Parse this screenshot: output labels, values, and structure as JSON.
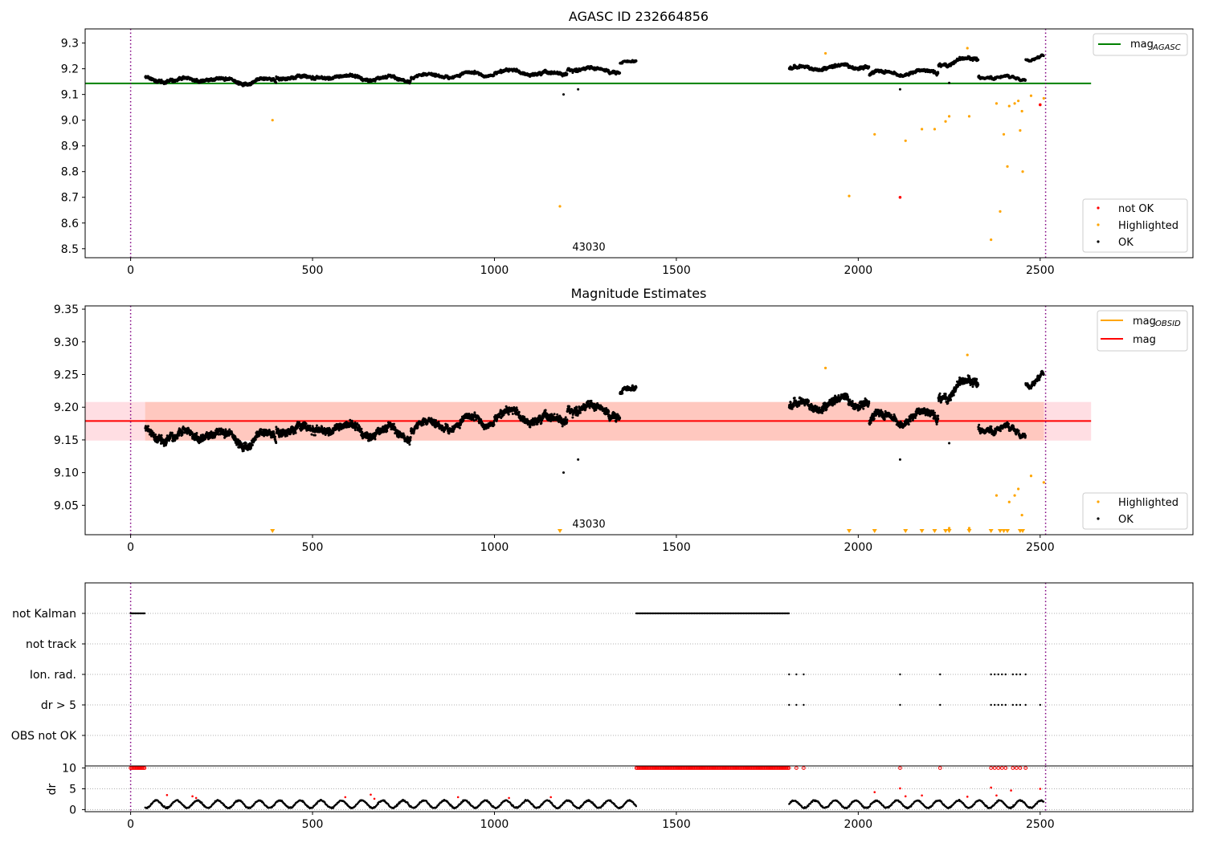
{
  "chart_data": [
    {
      "type": "scatter",
      "title": "AGASC ID 232664856",
      "xlim": [
        -125,
        2920
      ],
      "ylim": [
        8.465,
        9.355
      ],
      "xticks": [
        0,
        500,
        1000,
        1500,
        2000,
        2500
      ],
      "yticks": [
        8.5,
        8.6,
        8.7,
        8.8,
        8.9,
        9.0,
        9.1,
        9.2,
        9.3
      ],
      "vlines": [
        0,
        2515
      ],
      "hline": {
        "name": "mag_AGASC",
        "y": 9.143,
        "x_range": [
          -125,
          2640
        ],
        "color": "#008000"
      },
      "annotation": {
        "text": "43030",
        "x": 1200,
        "y": 8.5
      },
      "series_colors": {
        "OK": "#000000",
        "Highlighted": "#ffa500",
        "not OK": "#ff0000"
      },
      "ok_segments": [
        {
          "x0": 40,
          "x1": 400,
          "y_start": 9.16,
          "y_end": 9.15,
          "noise": 0.015
        },
        {
          "x0": 400,
          "x1": 770,
          "y_start": 9.17,
          "y_end": 9.16,
          "noise": 0.015
        },
        {
          "x0": 770,
          "x1": 1000,
          "y_start": 9.17,
          "y_end": 9.18,
          "noise": 0.012
        },
        {
          "x0": 1000,
          "x1": 1200,
          "y_start": 9.19,
          "y_end": 9.18,
          "noise": 0.015
        },
        {
          "x0": 1200,
          "x1": 1345,
          "y_start": 9.2,
          "y_end": 9.19,
          "noise": 0.015
        },
        {
          "x0": 1345,
          "x1": 1390,
          "y_start": 9.225,
          "y_end": 9.225,
          "noise": 0.008
        },
        {
          "x0": 1810,
          "x1": 2030,
          "y_start": 9.2,
          "y_end": 9.21,
          "noise": 0.015
        },
        {
          "x0": 2030,
          "x1": 2220,
          "y_start": 9.18,
          "y_end": 9.19,
          "noise": 0.015
        },
        {
          "x0": 2220,
          "x1": 2330,
          "y_start": 9.22,
          "y_end": 9.24,
          "noise": 0.015
        },
        {
          "x0": 2330,
          "x1": 2460,
          "y_start": 9.17,
          "y_end": 9.16,
          "noise": 0.01
        },
        {
          "x0": 2460,
          "x1": 2510,
          "y_start": 9.24,
          "y_end": 9.25,
          "noise": 0.008
        }
      ],
      "ok_outliers": [
        {
          "x": 1190,
          "y": 9.1
        },
        {
          "x": 1230,
          "y": 9.12
        },
        {
          "x": 2115,
          "y": 9.12
        },
        {
          "x": 2250,
          "y": 9.145
        }
      ],
      "highlighted": [
        {
          "x": 390,
          "y": 9.0
        },
        {
          "x": 1180,
          "y": 8.665
        },
        {
          "x": 1910,
          "y": 9.26
        },
        {
          "x": 1975,
          "y": 8.705
        },
        {
          "x": 2045,
          "y": 8.945
        },
        {
          "x": 2130,
          "y": 8.92
        },
        {
          "x": 2175,
          "y": 8.965
        },
        {
          "x": 2210,
          "y": 8.965
        },
        {
          "x": 2240,
          "y": 8.995
        },
        {
          "x": 2250,
          "y": 9.015
        },
        {
          "x": 2300,
          "y": 9.28
        },
        {
          "x": 2305,
          "y": 9.015
        },
        {
          "x": 2365,
          "y": 8.535
        },
        {
          "x": 2380,
          "y": 9.065
        },
        {
          "x": 2390,
          "y": 8.645
        },
        {
          "x": 2400,
          "y": 8.945
        },
        {
          "x": 2410,
          "y": 8.82
        },
        {
          "x": 2415,
          "y": 9.055
        },
        {
          "x": 2430,
          "y": 9.065
        },
        {
          "x": 2440,
          "y": 9.075
        },
        {
          "x": 2445,
          "y": 8.96
        },
        {
          "x": 2450,
          "y": 9.035
        },
        {
          "x": 2452,
          "y": 8.8
        },
        {
          "x": 2475,
          "y": 9.095
        },
        {
          "x": 2510,
          "y": 9.085
        }
      ],
      "not_ok": [
        {
          "x": 2115,
          "y": 8.7
        },
        {
          "x": 2500,
          "y": 9.06
        }
      ],
      "legend_line": {
        "placement": "upper right",
        "entries": [
          {
            "label_main": "mag",
            "label_sub": "AGASC"
          }
        ]
      },
      "legend_points": {
        "placement": "lower right",
        "entries": [
          "not OK",
          "Highlighted",
          "OK"
        ]
      }
    },
    {
      "type": "scatter",
      "title": "Magnitude Estimates",
      "xlim": [
        -125,
        2920
      ],
      "ylim": [
        9.005,
        9.355
      ],
      "xticks": [
        0,
        500,
        1000,
        1500,
        2000,
        2500
      ],
      "yticks": [
        9.05,
        9.1,
        9.15,
        9.2,
        9.25,
        9.3,
        9.35
      ],
      "ytick_labels": [
        "9.05",
        "9.10",
        "9.15",
        "9.20",
        "9.25",
        "9.30",
        "9.35"
      ],
      "vlines": [
        0,
        2515
      ],
      "mag_line": {
        "y": 9.179,
        "x_range": [
          -125,
          2640
        ],
        "color": "#ff0000"
      },
      "mag_band": {
        "y_low": 9.149,
        "y_high": 9.208,
        "x_range": [
          -125,
          2640
        ]
      },
      "obsid_band": {
        "y_low": 9.149,
        "y_high": 9.208,
        "x_range": [
          40,
          2510
        ]
      },
      "annotation": {
        "text": "43030",
        "x": 1200,
        "y": 9.01
      },
      "clipped_triangles_x": [
        390,
        1180,
        1975,
        2045,
        2130,
        2175,
        2210,
        2240,
        2250,
        2305,
        2365,
        2390,
        2400,
        2410,
        2445,
        2452
      ],
      "legend_line": {
        "placement": "upper right",
        "entries": [
          {
            "label_main": "mag",
            "label_sub": "OBSID",
            "color": "#ffa500"
          },
          {
            "label_main": "mag",
            "label_sub": "",
            "color": "#ff0000"
          }
        ]
      },
      "legend_points": {
        "placement": "lower right",
        "entries": [
          "Highlighted",
          "OK"
        ]
      }
    },
    {
      "type": "scatter",
      "title": "",
      "xlim": [
        -125,
        2920
      ],
      "flag_rows": [
        "not Kalman",
        "not track",
        "Ion. rad.",
        "dr > 5",
        "OBS not OK"
      ],
      "flags": {
        "not Kalman": [
          [
            0,
            40
          ],
          [
            1390,
            1810
          ]
        ],
        "not track": [],
        "Ion. rad.": [
          1810,
          1830,
          1850,
          2115,
          2225,
          2365,
          2375,
          2385,
          2395,
          2405,
          2425,
          2435,
          2445,
          2460
        ],
        "dr > 5": [
          1810,
          1830,
          1850,
          2115,
          2225,
          2365,
          2375,
          2385,
          2395,
          2405,
          2425,
          2435,
          2445,
          2460,
          2500
        ],
        "OBS not OK": []
      },
      "vlines": [
        0,
        2515
      ]
    },
    {
      "type": "scatter",
      "title": "",
      "ylabel": "dr",
      "xlim": [
        -125,
        2920
      ],
      "ylim": [
        -0.5,
        10.5
      ],
      "xticks": [
        0,
        500,
        1000,
        1500,
        2000,
        2500
      ],
      "yticks": [
        0,
        5,
        10
      ],
      "dr_capped_red": [
        [
          0,
          40
        ],
        [
          1390,
          1810
        ]
      ],
      "dr_capped_red_points": [
        1830,
        1850,
        2115,
        2225,
        2365,
        2375,
        2385,
        2395,
        2405,
        2425,
        2435,
        2445,
        2460
      ],
      "dr_red_scatter": [
        {
          "x": 100,
          "y": 3.5
        },
        {
          "x": 170,
          "y": 3.2
        },
        {
          "x": 180,
          "y": 2.8
        },
        {
          "x": 590,
          "y": 3.0
        },
        {
          "x": 660,
          "y": 3.6
        },
        {
          "x": 670,
          "y": 2.6
        },
        {
          "x": 900,
          "y": 3.0
        },
        {
          "x": 1040,
          "y": 2.8
        },
        {
          "x": 1155,
          "y": 3.0
        },
        {
          "x": 2045,
          "y": 4.2
        },
        {
          "x": 2115,
          "y": 5.1
        },
        {
          "x": 2130,
          "y": 3.2
        },
        {
          "x": 2175,
          "y": 3.4
        },
        {
          "x": 2300,
          "y": 3.1
        },
        {
          "x": 2365,
          "y": 5.3
        },
        {
          "x": 2380,
          "y": 3.4
        },
        {
          "x": 2420,
          "y": 4.6
        },
        {
          "x": 2500,
          "y": 5.0
        }
      ],
      "vlines": [
        0,
        2515
      ]
    }
  ]
}
